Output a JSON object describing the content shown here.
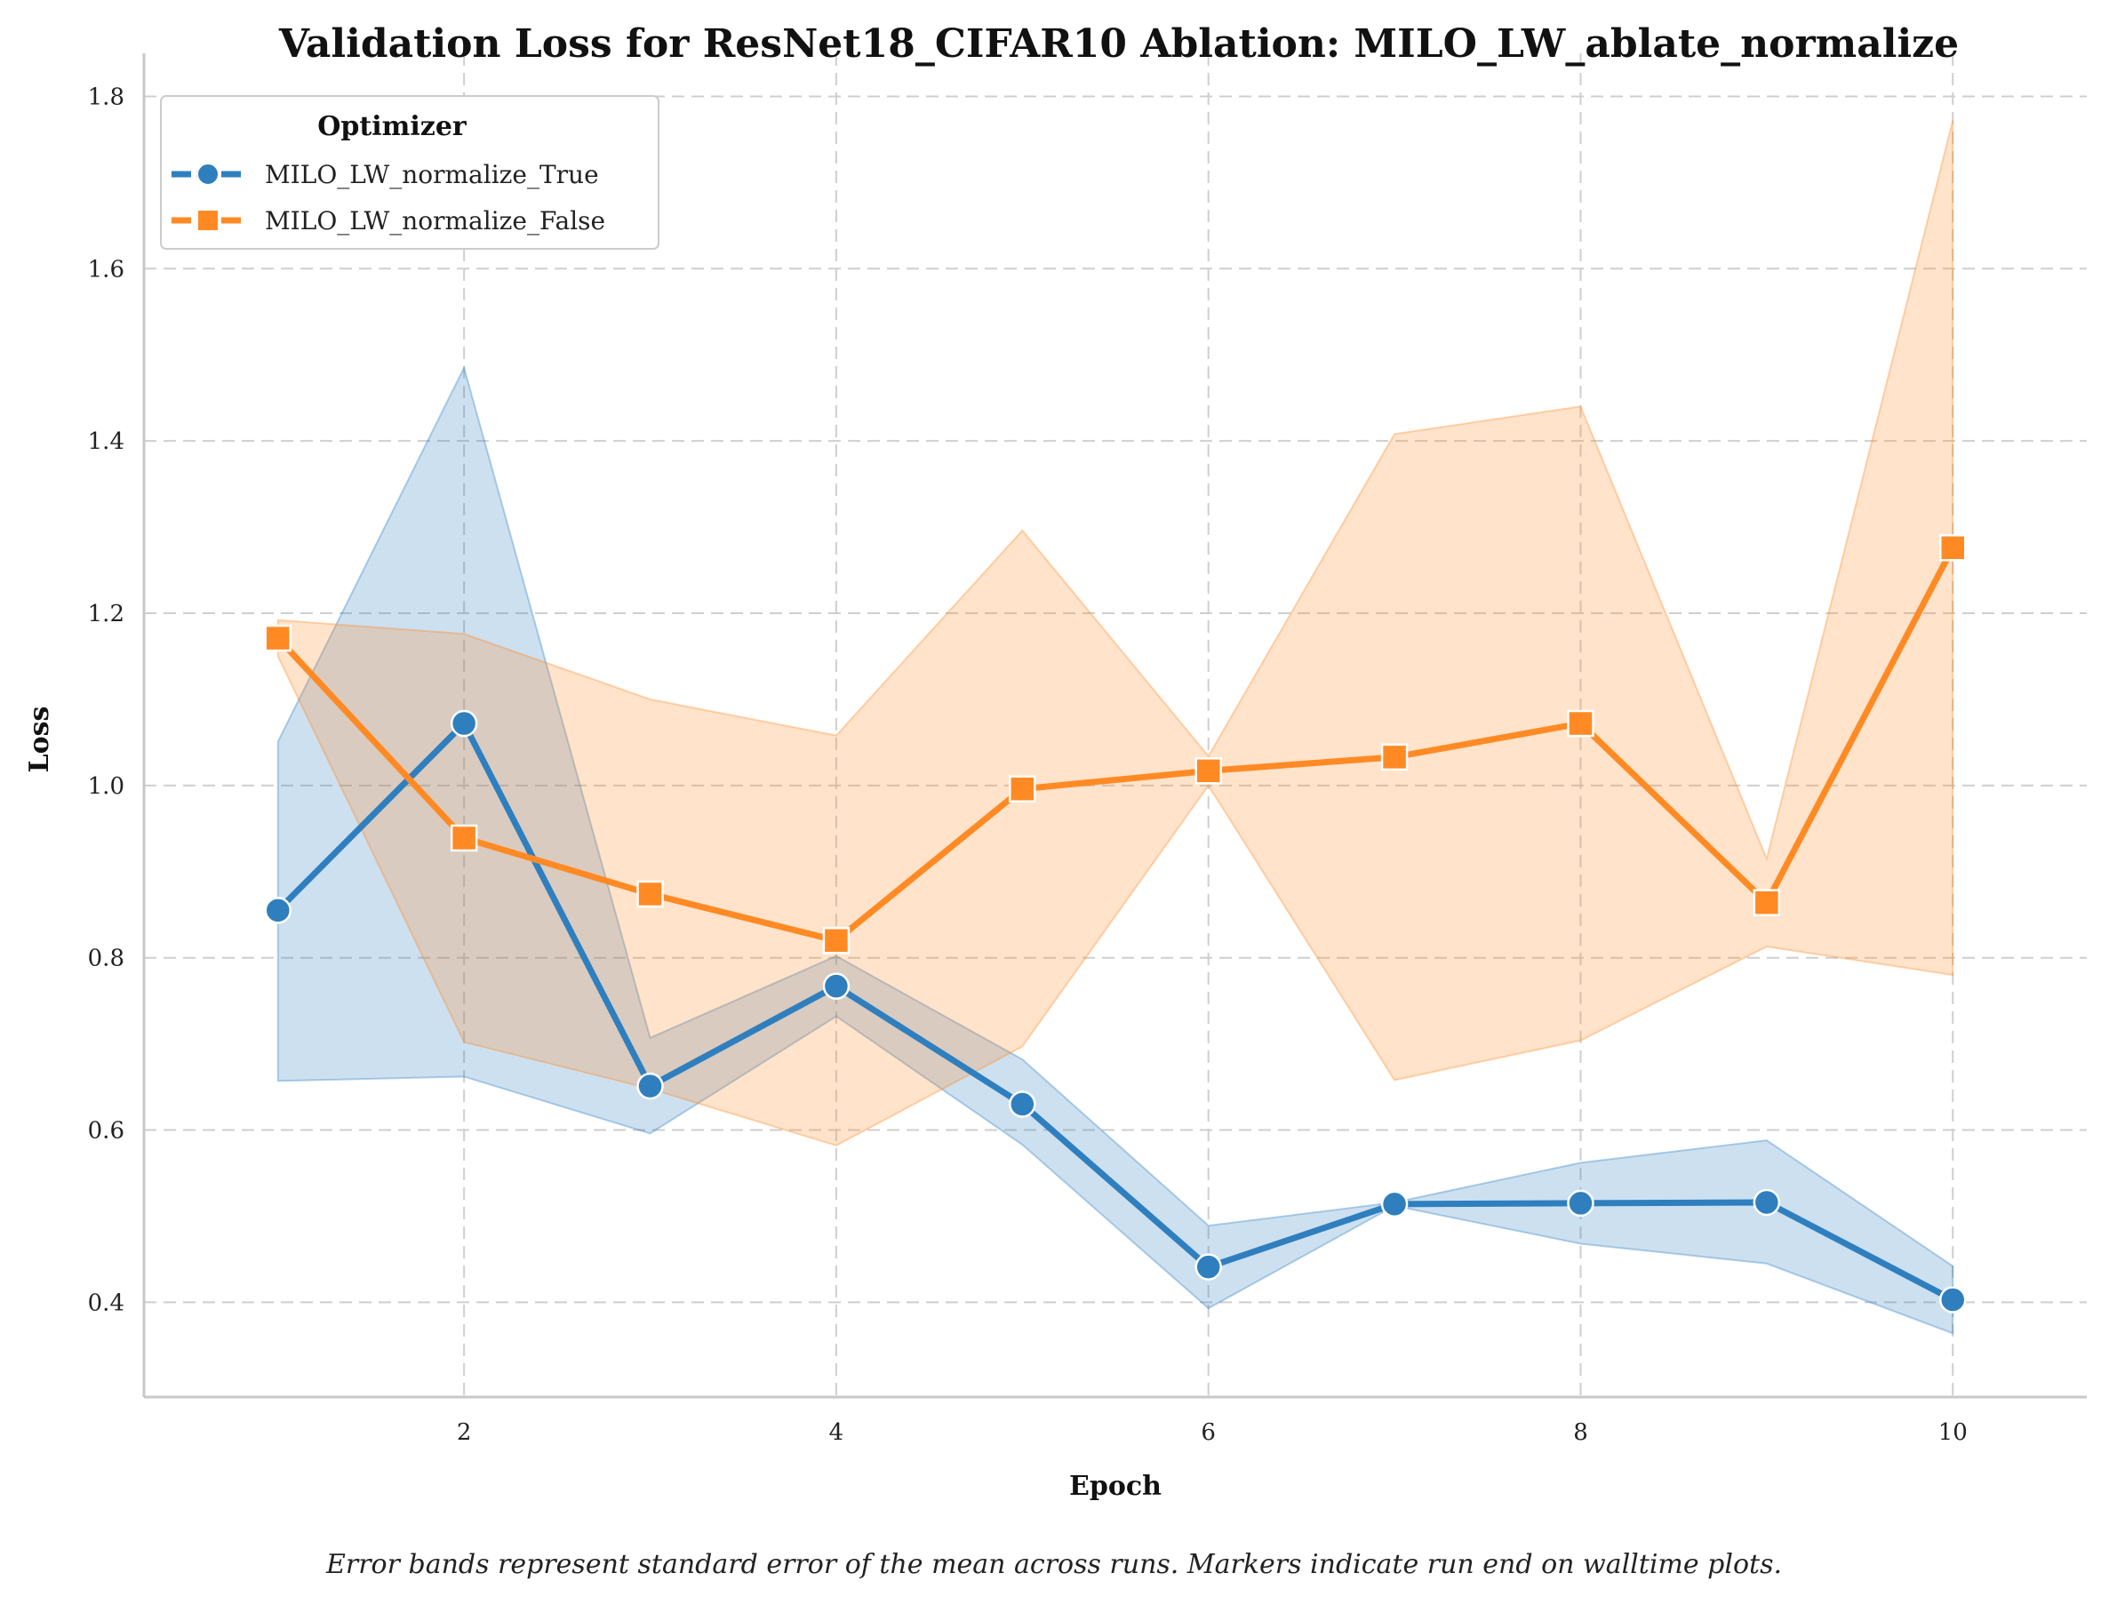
{
  "chart_data": {
    "type": "line",
    "title": "Validation Loss for ResNet18_CIFAR10 Ablation: MILO_LW_ablate_normalize",
    "xlabel": "Epoch",
    "ylabel": "Loss",
    "x": [
      1,
      2,
      3,
      4,
      5,
      6,
      7,
      8,
      9,
      10
    ],
    "xlim": [
      0.28,
      10.72
    ],
    "ylim": [
      0.29,
      1.85
    ],
    "xticks": [
      2,
      4,
      6,
      8,
      10
    ],
    "yticks": [
      0.4,
      0.6,
      0.8,
      1.0,
      1.2,
      1.4,
      1.6,
      1.8
    ],
    "grid": true,
    "legend": {
      "title": "Optimizer",
      "position": "top-left"
    },
    "series": [
      {
        "name": "MILO_LW_normalize_True",
        "color": "#2f7fbf",
        "marker": "circle",
        "values": [
          0.855,
          1.072,
          0.651,
          0.767,
          0.63,
          0.441,
          0.514,
          0.515,
          0.516,
          0.403
        ],
        "lower": [
          0.657,
          0.662,
          0.596,
          0.732,
          0.583,
          0.393,
          0.512,
          0.468,
          0.445,
          0.364
        ],
        "upper": [
          1.051,
          1.485,
          0.707,
          0.802,
          0.682,
          0.489,
          0.516,
          0.562,
          0.588,
          0.442
        ]
      },
      {
        "name": "MILO_LW_normalize_False",
        "color": "#ff8a24",
        "marker": "square",
        "values": [
          1.171,
          0.939,
          0.874,
          0.82,
          0.996,
          1.017,
          1.033,
          1.072,
          0.864,
          1.276
        ],
        "lower": [
          1.15,
          0.702,
          0.648,
          0.582,
          0.697,
          1.0,
          0.658,
          0.704,
          0.813,
          0.78
        ],
        "upper": [
          1.192,
          1.176,
          1.1,
          1.058,
          1.296,
          1.034,
          1.408,
          1.44,
          0.915,
          1.772
        ]
      }
    ],
    "caption": "Error bands represent standard error of the mean across runs. Markers indicate run end on walltime plots."
  }
}
